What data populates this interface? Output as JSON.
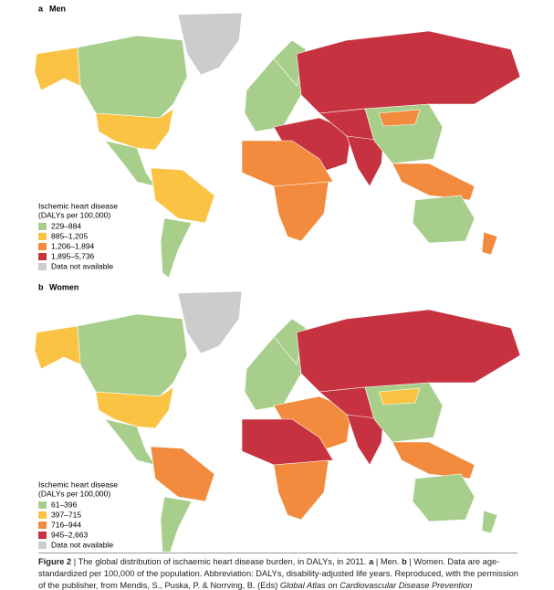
{
  "panels": [
    {
      "label": "a",
      "title": "Men",
      "legend": {
        "title": "Ischemic heart disease",
        "subtitle": "(DALYs per 100,000)",
        "items": [
          {
            "label": "229–884",
            "color": "#a7cf8b"
          },
          {
            "label": "885–1,205",
            "color": "#fbc343"
          },
          {
            "label": "1,206–1,894",
            "color": "#f28b3d"
          },
          {
            "label": "1,895–5,736",
            "color": "#c6323f"
          },
          {
            "label": "Data not available",
            "color": "#cccccc"
          }
        ]
      }
    },
    {
      "label": "b",
      "title": "Women",
      "legend": {
        "title": "Ischemic heart disease",
        "subtitle": "(DALYs per 100,000)",
        "items": [
          {
            "label": "61–396",
            "color": "#a7cf8b"
          },
          {
            "label": "397–715",
            "color": "#fbc343"
          },
          {
            "label": "716–944",
            "color": "#f28b3d"
          },
          {
            "label": "945–2,663",
            "color": "#c6323f"
          },
          {
            "label": "Data not available",
            "color": "#cccccc"
          }
        ]
      }
    }
  ],
  "caption": {
    "parts": [
      {
        "text": "Figure 2",
        "bold": true
      },
      {
        "text": " | The global distribution of ischaemic heart disease burden, in DALYs, in 2011. "
      },
      {
        "text": "a",
        "bold": true
      },
      {
        "text": " | Men. "
      },
      {
        "text": "b",
        "bold": true
      },
      {
        "text": " | Women. Data are age-standardized per 100,000 of the population. Abbreviation: DALYs, disability-adjusted life years. Reproduced, with the permission of the publisher, from Mendis, S., Puska, P. & Norrving, B. (Eds) "
      },
      {
        "text": "Global Atlas on Cardiovascular Disease Prevention",
        "italic": true
      }
    ]
  }
}
